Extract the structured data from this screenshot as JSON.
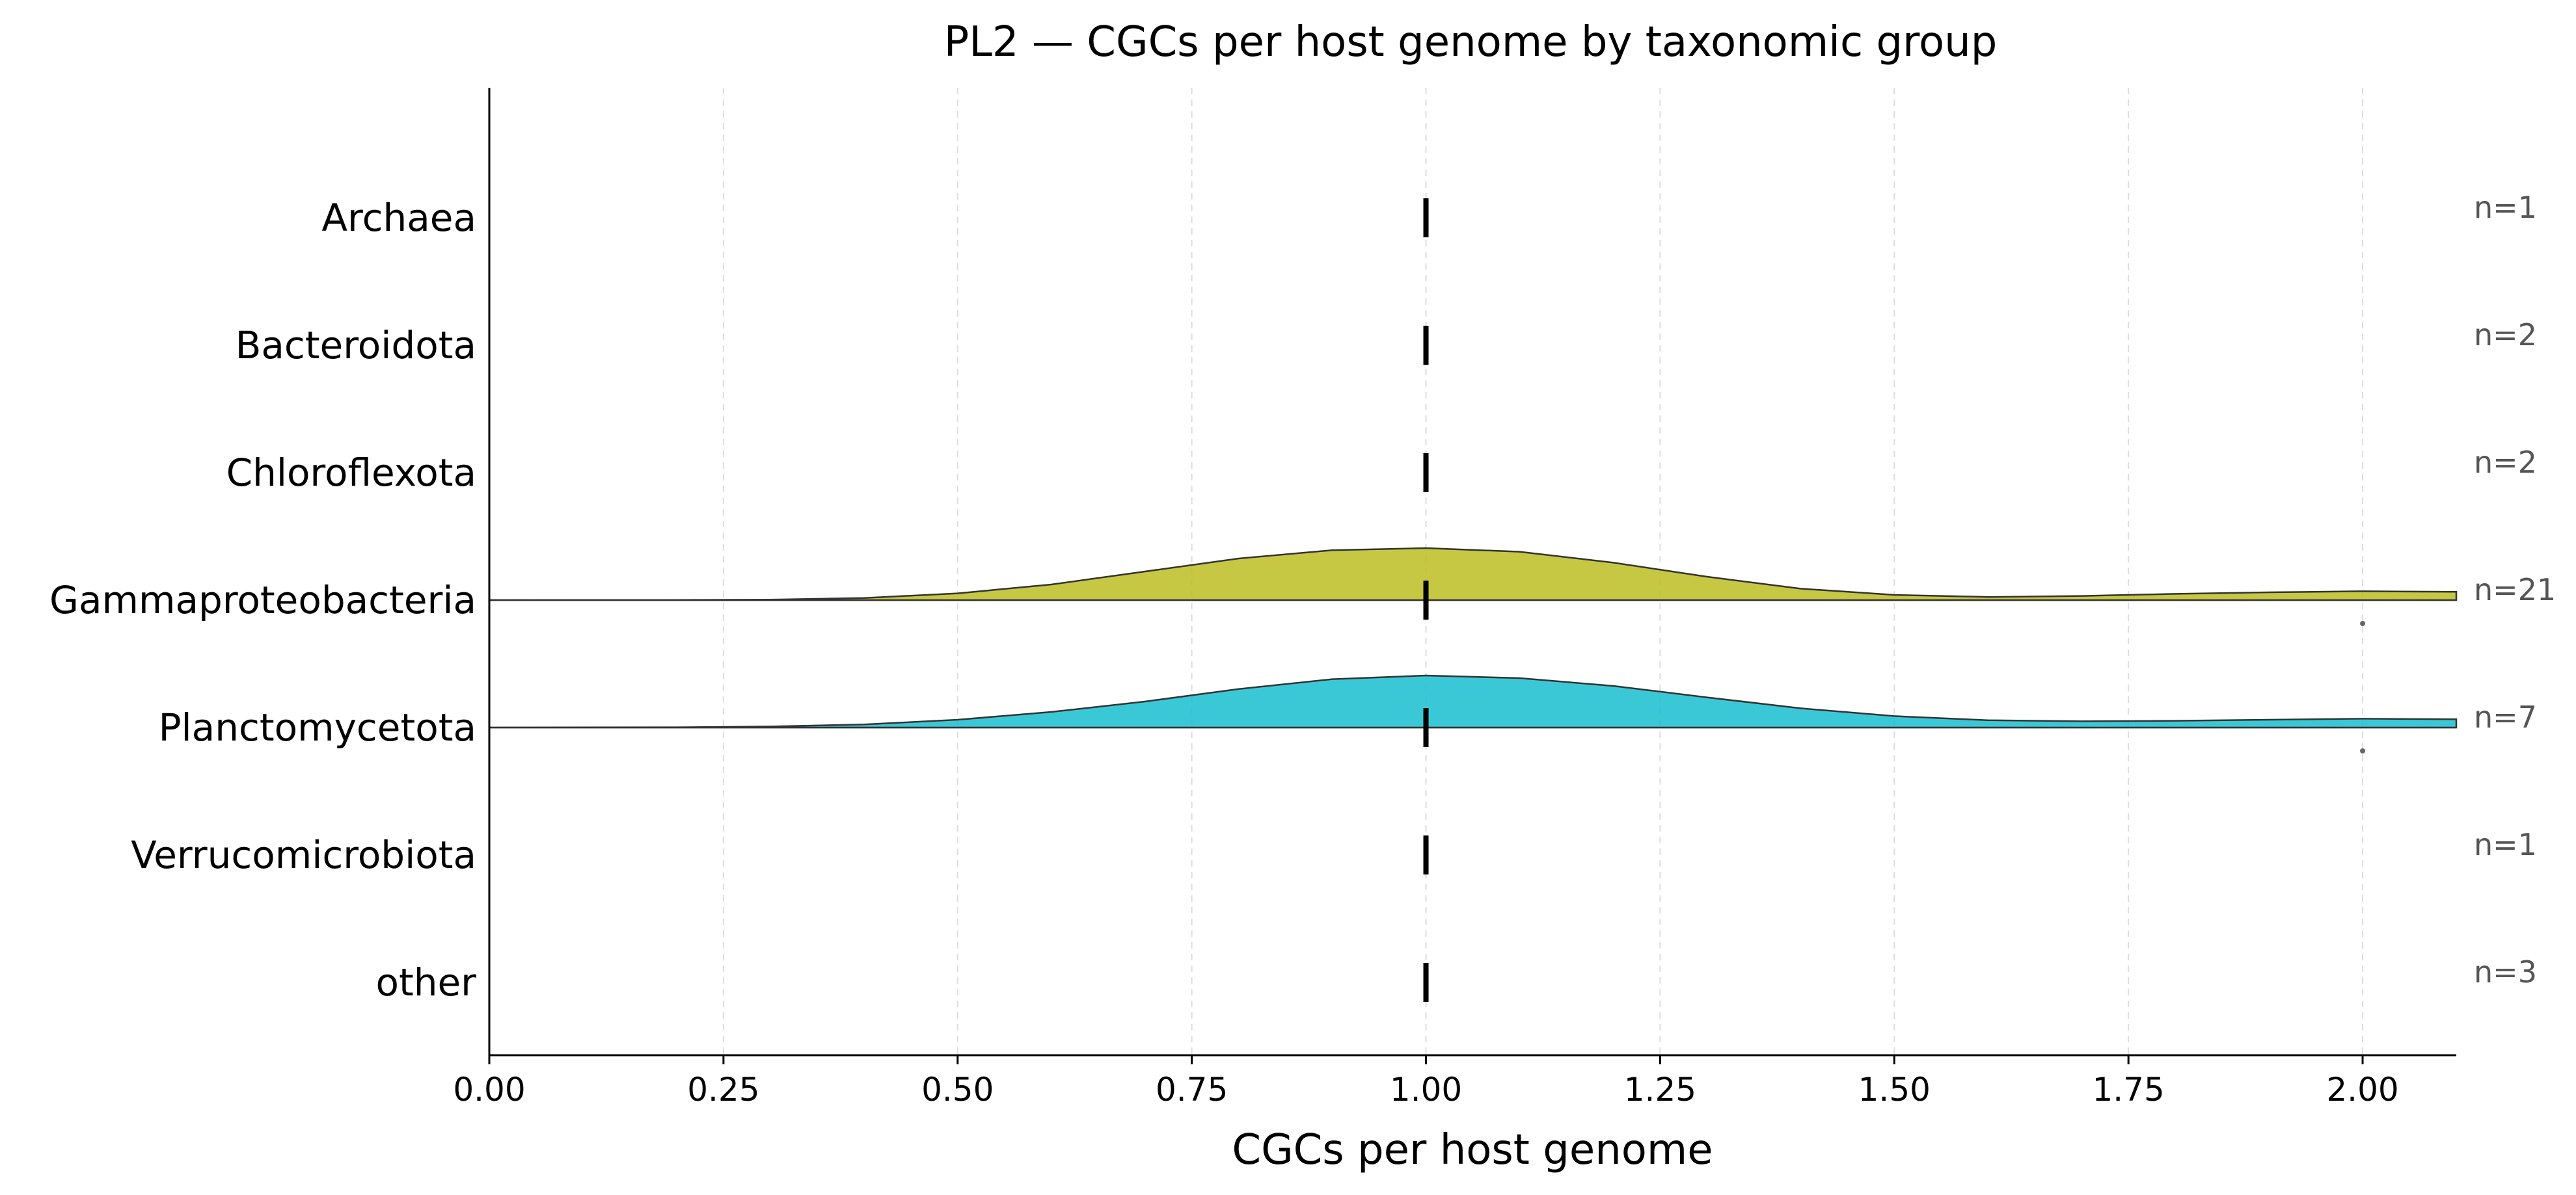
{
  "chart_data": {
    "type": "violin",
    "title": "PL2 — CGCs per host genome by taxonomic group",
    "xlabel": "CGCs per host genome",
    "xlim": [
      0,
      2.1
    ],
    "xticks": [
      0,
      0.25,
      0.5,
      0.75,
      1.0,
      1.25,
      1.5,
      1.75,
      2.0
    ],
    "xtick_labels": [
      "0.00",
      "0.25",
      "0.50",
      "0.75",
      "1.00",
      "1.25",
      "1.50",
      "1.75",
      "2.00"
    ],
    "grid": "x-dashed",
    "categories": [
      {
        "name": "Archaea",
        "n_label": "n=1",
        "median": 1.0
      },
      {
        "name": "Bacteroidota",
        "n_label": "n=2",
        "median": 1.0
      },
      {
        "name": "Chloroflexota",
        "n_label": "n=2",
        "median": 1.0
      },
      {
        "name": "Gammaproteobacteria",
        "n_label": "n=21",
        "median": 1.0,
        "color": "#bcbd22",
        "density": [
          [
            0.0,
            0.0
          ],
          [
            0.2,
            0.002
          ],
          [
            0.3,
            0.01
          ],
          [
            0.4,
            0.04
          ],
          [
            0.5,
            0.13
          ],
          [
            0.6,
            0.3
          ],
          [
            0.7,
            0.55
          ],
          [
            0.8,
            0.8
          ],
          [
            0.9,
            0.96
          ],
          [
            1.0,
            1.0
          ],
          [
            1.1,
            0.93
          ],
          [
            1.2,
            0.72
          ],
          [
            1.3,
            0.45
          ],
          [
            1.4,
            0.22
          ],
          [
            1.5,
            0.1
          ],
          [
            1.6,
            0.06
          ],
          [
            1.7,
            0.08
          ],
          [
            1.8,
            0.12
          ],
          [
            1.9,
            0.15
          ],
          [
            2.0,
            0.17
          ],
          [
            2.1,
            0.16
          ]
        ],
        "outliers": [
          2.0
        ]
      },
      {
        "name": "Planctomycetota",
        "n_label": "n=7",
        "median": 1.0,
        "color": "#17becf",
        "density": [
          [
            0.0,
            0.0
          ],
          [
            0.2,
            0.005
          ],
          [
            0.3,
            0.02
          ],
          [
            0.4,
            0.06
          ],
          [
            0.5,
            0.15
          ],
          [
            0.6,
            0.3
          ],
          [
            0.7,
            0.5
          ],
          [
            0.8,
            0.74
          ],
          [
            0.9,
            0.93
          ],
          [
            1.0,
            1.0
          ],
          [
            1.1,
            0.95
          ],
          [
            1.2,
            0.8
          ],
          [
            1.3,
            0.58
          ],
          [
            1.4,
            0.37
          ],
          [
            1.5,
            0.22
          ],
          [
            1.6,
            0.14
          ],
          [
            1.7,
            0.12
          ],
          [
            1.8,
            0.13
          ],
          [
            1.9,
            0.15
          ],
          [
            2.0,
            0.17
          ],
          [
            2.1,
            0.16
          ]
        ],
        "outliers": [
          2.0
        ]
      },
      {
        "name": "Verrucomicrobiota",
        "n_label": "n=1",
        "median": 1.0
      },
      {
        "name": "other",
        "n_label": "n=3",
        "median": 1.0
      }
    ],
    "colors": {
      "gammaproteobacteria": "#bcbd22",
      "planctomycetota": "#17becf"
    }
  }
}
